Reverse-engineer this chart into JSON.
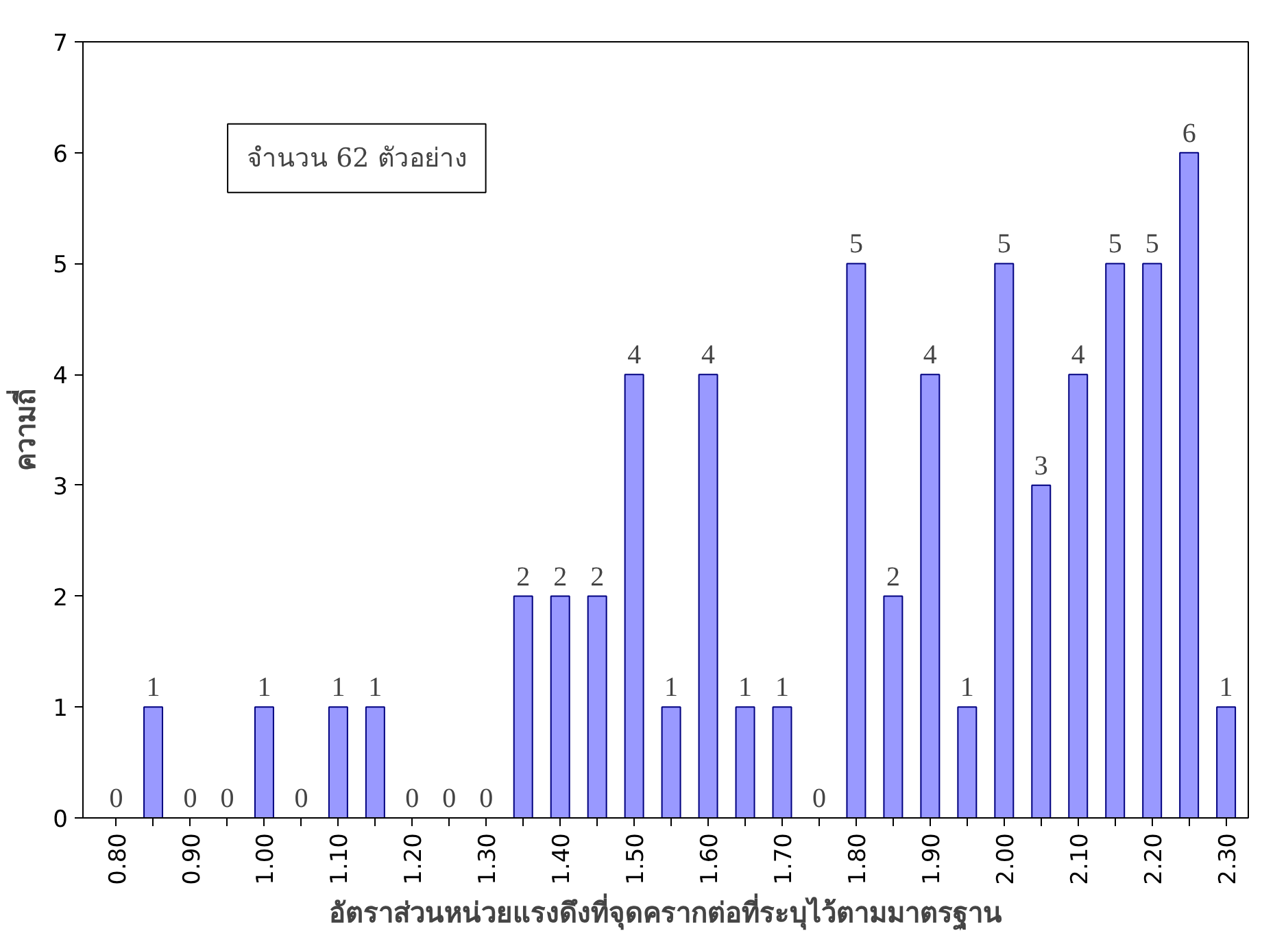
{
  "chart_data": {
    "type": "bar",
    "categories": [
      "0.80",
      null,
      "0.90",
      null,
      "1.00",
      null,
      "1.10",
      null,
      "1.20",
      null,
      "1.30",
      null,
      "1.40",
      null,
      "1.50",
      null,
      "1.60",
      null,
      "1.70",
      null,
      "1.80",
      null,
      "1.90",
      null,
      "2.00",
      null,
      "2.10",
      null,
      "2.20",
      null,
      "2.30"
    ],
    "values": [
      0,
      1,
      0,
      0,
      1,
      0,
      1,
      1,
      0,
      0,
      0,
      2,
      2,
      2,
      4,
      1,
      4,
      1,
      1,
      0,
      5,
      2,
      4,
      1,
      5,
      3,
      4,
      5,
      5,
      6,
      1
    ],
    "color": "#9999ff",
    "xlabel": "อัตราส่วนหน่วยแรงดึงที่จุดครากต่อที่ระบุไว้ตามมาตรฐาน",
    "ylabel": "ความถี่",
    "annotations": [
      "จำนวน 62 ตัวอย่าง"
    ],
    "ylim": [
      0,
      7
    ],
    "yticks": [
      0,
      1,
      2,
      3,
      4,
      5,
      6,
      7
    ],
    "data_labels": true,
    "grid": false
  }
}
